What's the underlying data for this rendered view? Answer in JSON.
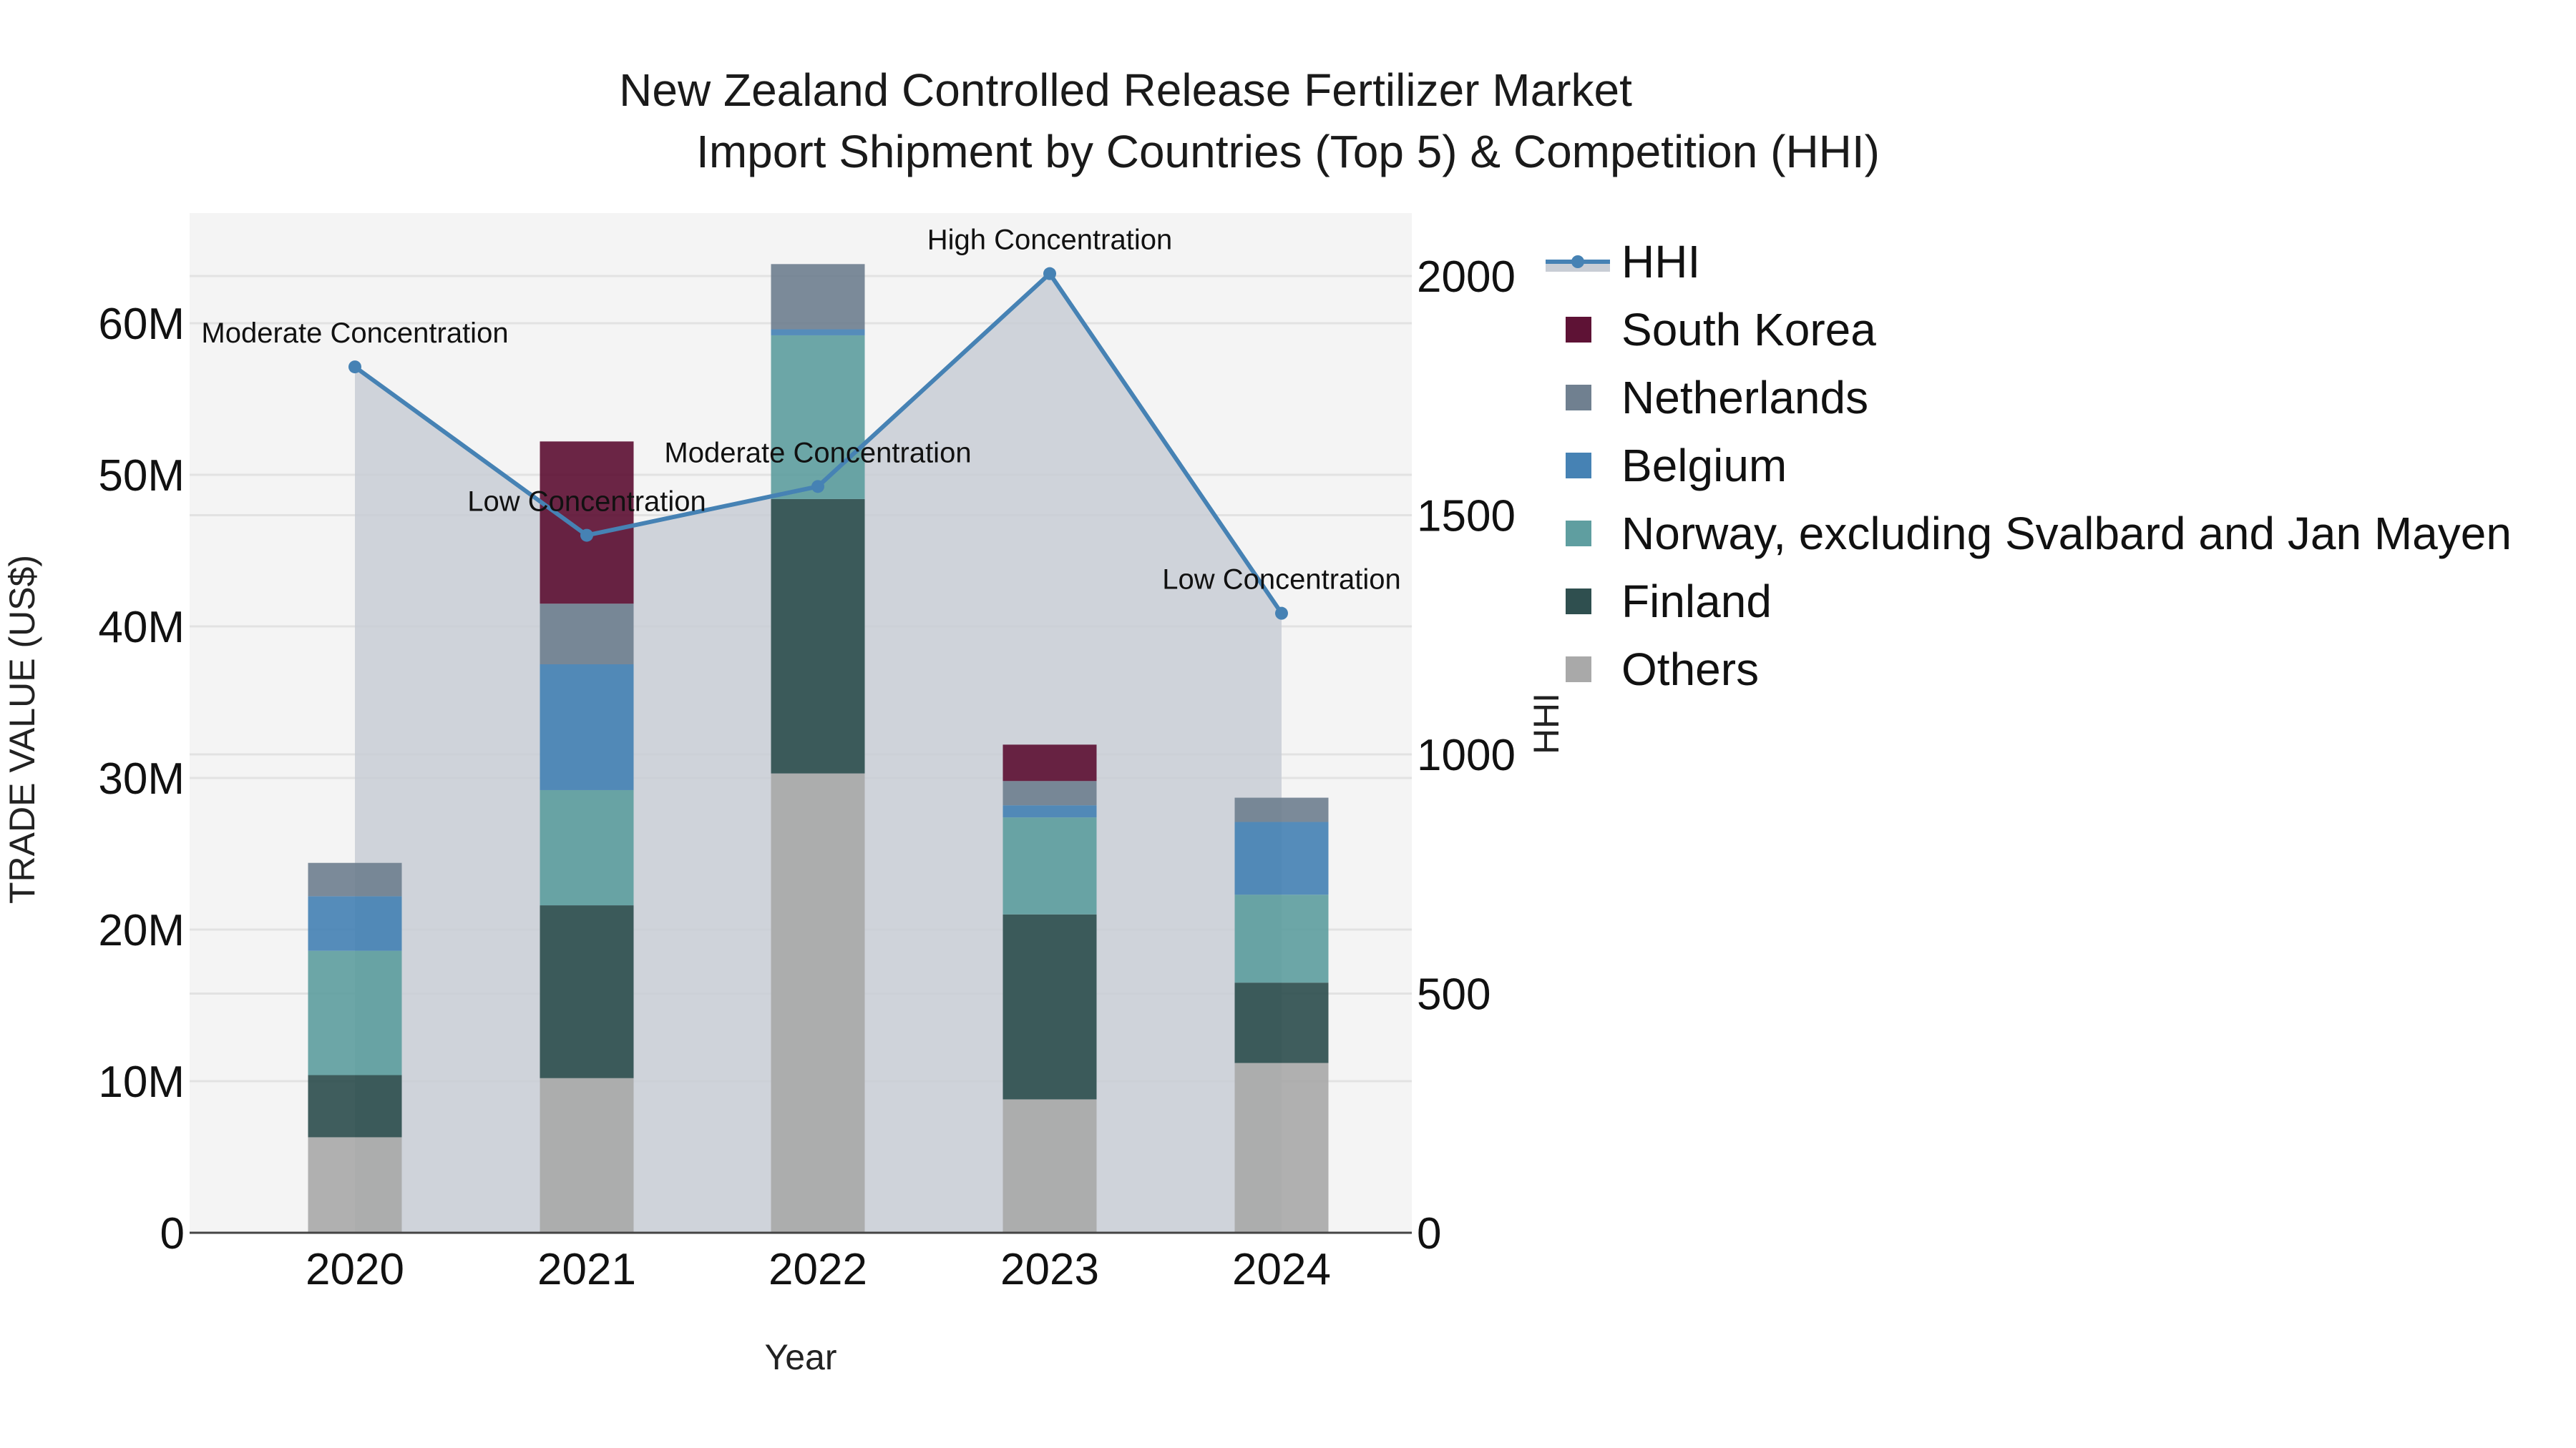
{
  "chart_data": {
    "type": "bar",
    "subtype": "stacked-bar-with-line-secondary-axis",
    "title": "New Zealand Controlled Release Fertilizer Market",
    "subtitle": "Import Shipment by Countries (Top 5) & Competition (HHI)",
    "xlabel": "Year",
    "ylabel": "TRADE VALUE (US$)",
    "y2label": "HHI",
    "categories": [
      "2020",
      "2021",
      "2022",
      "2023",
      "2024"
    ],
    "ylim": [
      0,
      66000000
    ],
    "y_ticks": [
      0,
      10000000,
      20000000,
      30000000,
      40000000,
      50000000,
      60000000
    ],
    "y_tick_labels": [
      "0",
      "10M",
      "20M",
      "30M",
      "40M",
      "50M",
      "60M"
    ],
    "y2lim": [
      0,
      2100
    ],
    "y2_ticks": [
      0,
      500,
      1000,
      1500,
      2000
    ],
    "y2_tick_labels": [
      "0",
      "500",
      "1000",
      "1500",
      "2000"
    ],
    "grid": true,
    "legend_position": "right",
    "series": [
      {
        "name": "Others",
        "color": "#a9a9a9",
        "values": [
          6300000,
          10200000,
          30300000,
          8800000,
          11200000
        ]
      },
      {
        "name": "Finland",
        "color": "#2f4f4f",
        "values": [
          4100000,
          11400000,
          18100000,
          12200000,
          5300000
        ]
      },
      {
        "name": "Norway, excluding Svalbard and Jan Mayen",
        "color": "#5f9ea0",
        "values": [
          8200000,
          7600000,
          10800000,
          6400000,
          5800000
        ]
      },
      {
        "name": "Belgium",
        "color": "#4682b4",
        "values": [
          3600000,
          8300000,
          400000,
          800000,
          4800000
        ]
      },
      {
        "name": "Netherlands",
        "color": "#708090",
        "values": [
          2200000,
          4000000,
          4300000,
          1600000,
          1600000
        ]
      },
      {
        "name": "South Korea",
        "color": "#5e1235",
        "values": [
          0,
          10700000,
          0,
          2400000,
          0
        ]
      }
    ],
    "line_series": {
      "name": "HHI",
      "axis": "y2",
      "color": "#4682b4",
      "fill_color": "#c8cdd5",
      "values": [
        1810,
        1458,
        1560,
        2005,
        1295
      ],
      "annotations": [
        "Moderate Concentration",
        "Low Concentration",
        "Moderate Concentration",
        "High Concentration",
        "Low Concentration"
      ]
    },
    "legend": [
      {
        "name": "HHI",
        "type": "line",
        "color": "#4682b4"
      },
      {
        "name": "South Korea",
        "type": "box",
        "color": "#5e1235"
      },
      {
        "name": "Netherlands",
        "type": "box",
        "color": "#708090"
      },
      {
        "name": "Belgium",
        "type": "box",
        "color": "#4682b4"
      },
      {
        "name": "Norway, excluding Svalbard and Jan Mayen",
        "type": "box",
        "color": "#5f9ea0"
      },
      {
        "name": "Finland",
        "type": "box",
        "color": "#2f4f4f"
      },
      {
        "name": "Others",
        "type": "box",
        "color": "#a9a9a9"
      }
    ]
  },
  "colors": {
    "plot_bg": "#f4f4f4",
    "grid": "#e2e2e2",
    "axis_line": "#444444"
  }
}
